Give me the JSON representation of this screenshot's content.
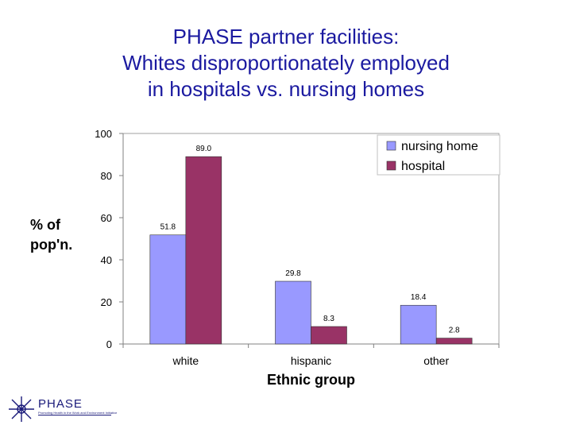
{
  "title_lines": [
    "PHASE partner facilities:",
    "Whites disproportionately employed",
    "in hospitals vs. nursing homes"
  ],
  "logo": {
    "name": "PHASE",
    "tagline": "Promoting Health in the Work and Environment Initiative"
  },
  "chart_data": {
    "type": "bar",
    "categories": [
      "white",
      "hispanic",
      "other"
    ],
    "series": [
      {
        "name": "nursing home",
        "values": [
          51.8,
          29.8,
          18.4
        ],
        "color": "#9999ff"
      },
      {
        "name": "hospital",
        "values": [
          89.0,
          8.3,
          2.8
        ],
        "color": "#993366"
      }
    ],
    "data_labels": [
      [
        "51.8",
        "29.8",
        "18.4"
      ],
      [
        "89.0",
        "8.3",
        "2.8"
      ]
    ],
    "xlabel": "Ethnic group",
    "ylabel_lines": [
      "% of",
      "pop'n."
    ],
    "ylim": [
      0,
      100
    ],
    "yticks": [
      0,
      20,
      40,
      60,
      80,
      100
    ],
    "grid": false,
    "legend_position": "top-right"
  }
}
